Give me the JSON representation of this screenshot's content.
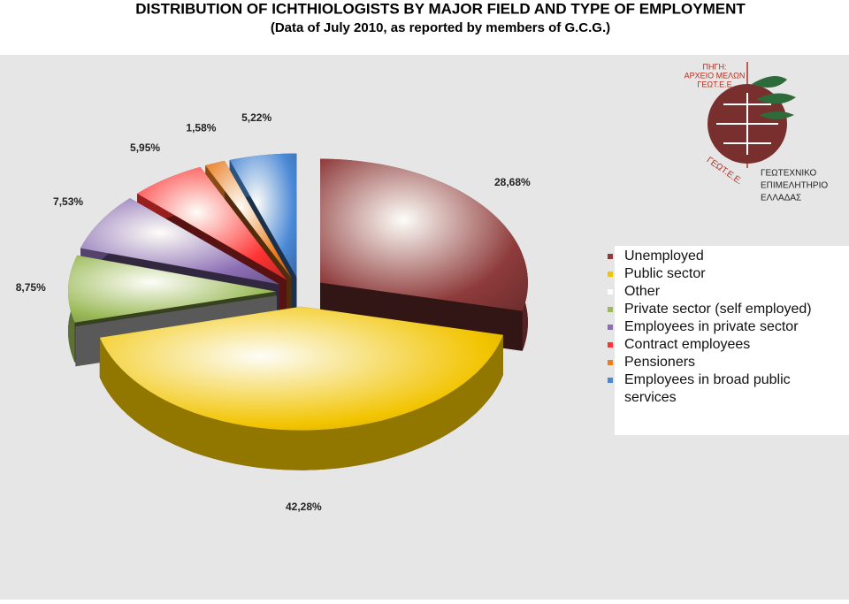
{
  "chart_data": {
    "type": "pie3d",
    "title": "DISTRIBUTION OF ICHTHIOLOGISTS BY MAJOR FIELD AND TYPE OF EMPLOYMENT",
    "subtitle": "(Data of July 2010, as reported by members of G.C.G.)",
    "categories": [
      "Unemployed",
      "Public sector",
      "Other",
      "Private sector (self employed)",
      "Employees in private sector",
      "Contract employees",
      "Pensioners",
      "Employees in broad public services"
    ],
    "values": [
      28.68,
      42.28,
      0,
      8.75,
      7.53,
      5.95,
      1.58,
      5.22
    ],
    "value_labels": [
      "28,68%",
      "42,28%",
      null,
      "8,75%",
      "7,53%",
      "5,95%",
      "1,58%",
      "5,22%"
    ],
    "colors": [
      "#8e3b3b",
      "#f2c400",
      "#ffffff",
      "#9bbb59",
      "#8d6fb5",
      "#ff3333",
      "#e97d22",
      "#4a88d6"
    ],
    "legend": "right"
  },
  "logo": {
    "source": [
      "ΠΗΓΗ:",
      "ΑΡΧΕΙΟ ΜΕΛΩΝ",
      "ΓΕΩΤ.Ε.Ε"
    ],
    "name": [
      "ΓΕΩΤΕΧΝΙΚΟ",
      "ΕΠΙΜΕΛΗΤΗΡΙΟ",
      "ΕΛΛΑΔΑΣ"
    ],
    "ring": "ΓΕΩΤ.Ε.Ε."
  }
}
